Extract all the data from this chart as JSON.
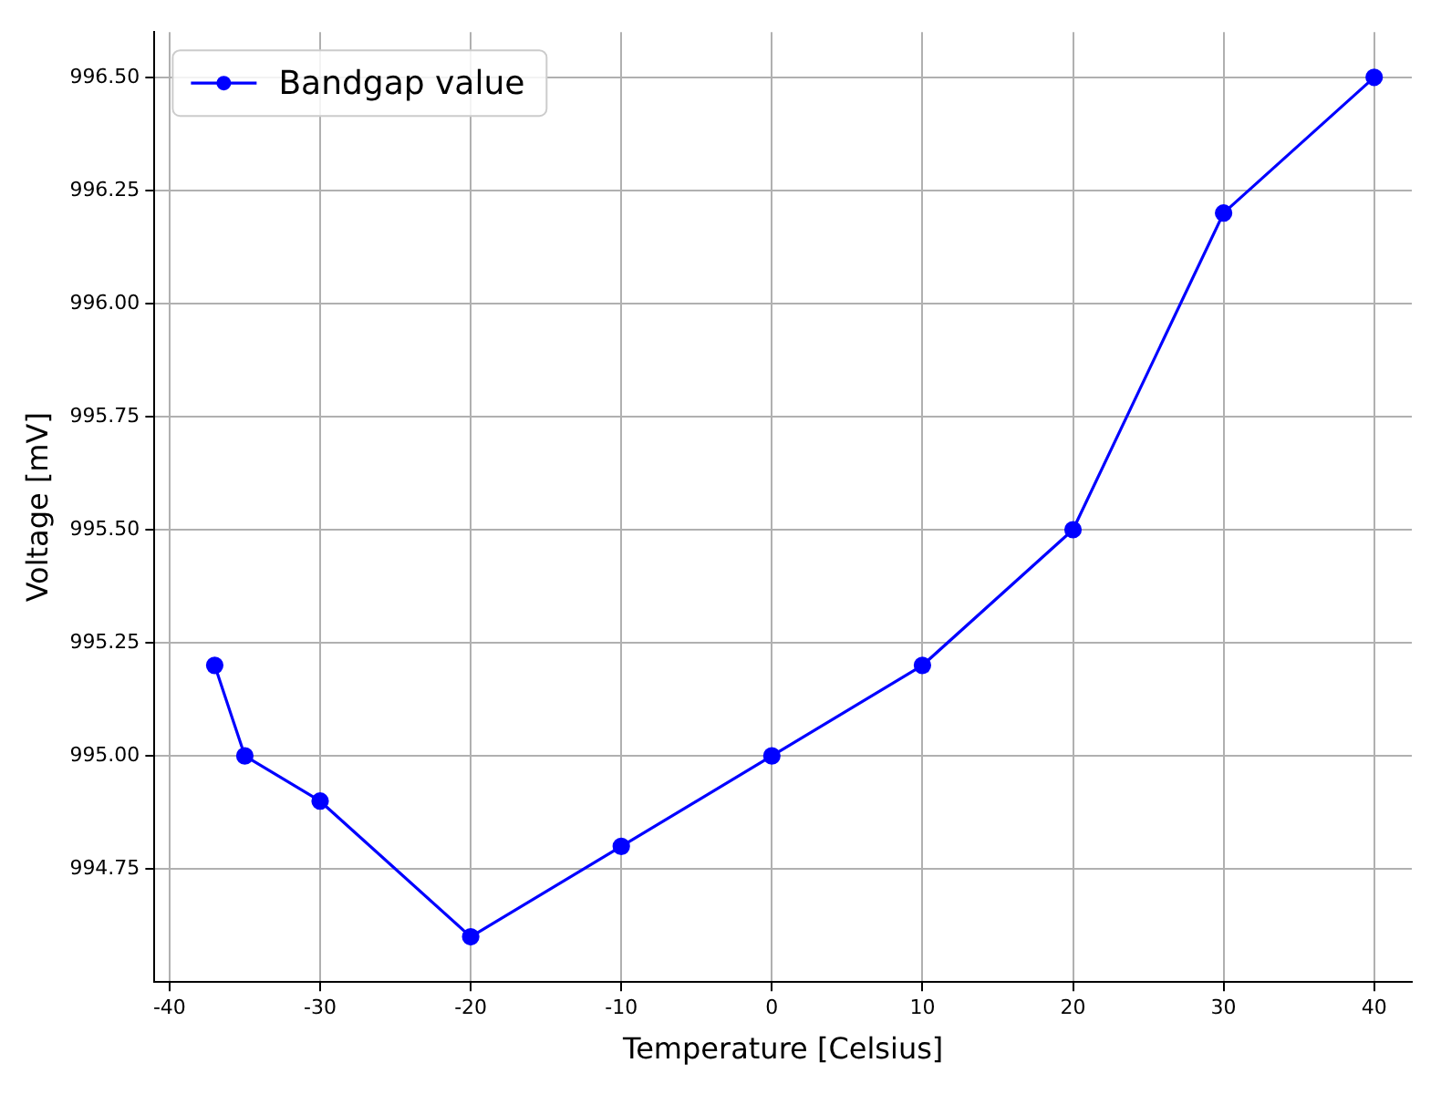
{
  "chart_data": {
    "type": "line",
    "xlabel": "Temperature [Celsius]",
    "ylabel": "Voltage [mV]",
    "x": [
      -37,
      -35,
      -30,
      -20,
      -10,
      0,
      10,
      20,
      30,
      40
    ],
    "series": [
      {
        "name": "Bandgap value",
        "color": "#0000ff",
        "values": [
          995.2,
          995.0,
          994.9,
          994.6,
          994.8,
          995.0,
          995.2,
          995.5,
          996.2,
          996.5
        ]
      }
    ],
    "xlim": [
      -41,
      42.5
    ],
    "xticks": [
      -40,
      -30,
      -20,
      -10,
      0,
      10,
      20,
      30,
      40
    ],
    "ylim": [
      994.5,
      996.6
    ],
    "yticks": [
      {
        "value": 994.75,
        "label": "994.75"
      },
      {
        "value": 995,
        "label": "995.00"
      },
      {
        "value": 995.25,
        "label": "995.25"
      },
      {
        "value": 995.5,
        "label": "995.50"
      },
      {
        "value": 995.75,
        "label": "995.75"
      },
      {
        "value": 996,
        "label": "996.00"
      },
      {
        "value": 996.25,
        "label": "996.25"
      },
      {
        "value": 996.5,
        "label": "996.50"
      }
    ],
    "grid": true,
    "legend": "top left",
    "marker": "circle",
    "line_style": "solid"
  }
}
